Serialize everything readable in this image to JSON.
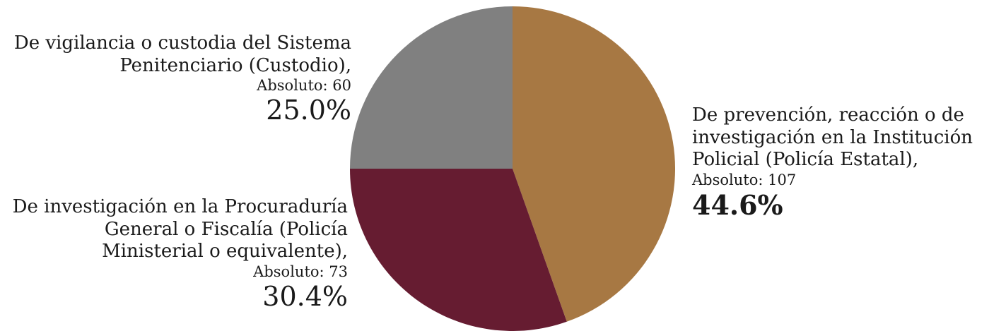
{
  "chart_data": {
    "type": "pie",
    "title": "",
    "start_angle_deg": 0,
    "direction": "clockwise",
    "slices": [
      {
        "label": "De prevención, reacción o de investigación en la Institución Policial (Policía Estatal),",
        "abs_label": "Absoluto: 107",
        "absolute": 107,
        "percent_label": "44.6%",
        "percent": 44.6,
        "color": "#A77843"
      },
      {
        "label": "De investigación en la Procuraduría General o Fiscalía (Policía Ministerial o equivalente),",
        "abs_label": "Absoluto: 73",
        "absolute": 73,
        "percent_label": "30.4%",
        "percent": 30.4,
        "color": "#661C31"
      },
      {
        "label": "De vigilancia o custodia del Sistema Penitenciario (Custodio),",
        "abs_label": "Absoluto: 60",
        "absolute": 60,
        "percent_label": "25.0%",
        "percent": 25.0,
        "color": "#808080"
      }
    ]
  }
}
